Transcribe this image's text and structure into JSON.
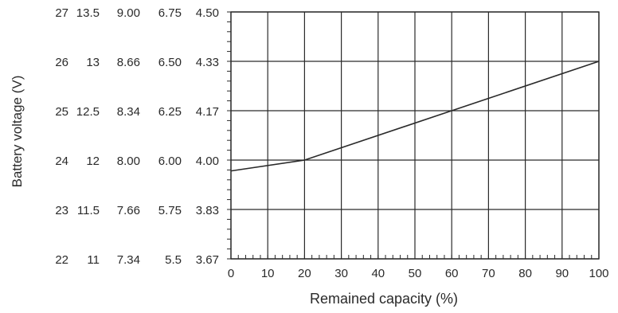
{
  "chart_data": {
    "type": "line",
    "title": "",
    "xlabel": "Remained capacity (%)",
    "ylabel": "Battery voltage (V)",
    "xlim": [
      0,
      100
    ],
    "ylim": [
      22,
      27
    ],
    "x_ticks": [
      "0",
      "10",
      "20",
      "30",
      "40",
      "50",
      "60",
      "70",
      "80",
      "90",
      "100"
    ],
    "y_ticks": [
      22,
      23,
      24,
      25,
      26,
      27
    ],
    "y_tick_columns": [
      [
        "27",
        "26",
        "25",
        "24",
        "23",
        "22"
      ],
      [
        "13.5",
        "13",
        "12.5",
        "12",
        "11.5",
        "11"
      ],
      [
        "9.00",
        "8.66",
        "8.34",
        "8.00",
        "7.66",
        "7.34"
      ],
      [
        "6.75",
        "6.50",
        "6.25",
        "6.00",
        "5.75",
        "5.5"
      ],
      [
        "4.50",
        "4.33",
        "4.17",
        "4.00",
        "3.83",
        "3.67"
      ]
    ],
    "grid": true,
    "series": [
      {
        "x": [
          0,
          20,
          60,
          100
        ],
        "y": [
          23.78,
          24.0,
          25.0,
          26.0
        ]
      }
    ]
  },
  "colors": {
    "line": "#2a2a2a",
    "grid": "#2a2a2a",
    "background": "#ffffff"
  }
}
